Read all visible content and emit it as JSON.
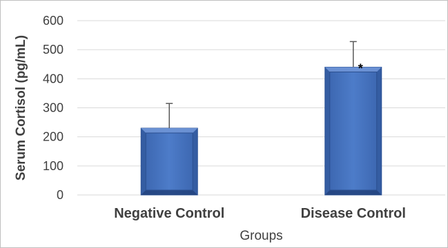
{
  "chart_data": {
    "type": "bar",
    "categories": [
      "Negative Control",
      "Disease Control"
    ],
    "series": [
      {
        "values": [
          230,
          440
        ],
        "error": [
          85,
          88
        ]
      }
    ],
    "annotations": [
      "",
      "*"
    ],
    "xlabel": "Groups",
    "ylabel": "Serum Cortisol (pg/mL)",
    "ylim": [
      0,
      600
    ],
    "yticks": [
      0,
      100,
      200,
      300,
      400,
      500,
      600
    ],
    "grid": true,
    "colors": {
      "bar": "#4472c4",
      "bar_dark": "#2f5597",
      "bar_light": "#6f95d6",
      "grid": "#d9d9d9",
      "error": "#595959"
    }
  }
}
